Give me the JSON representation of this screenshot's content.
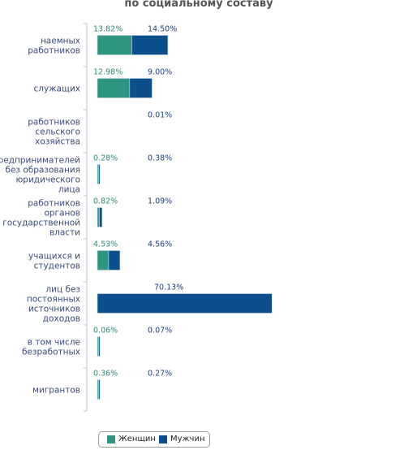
{
  "title": "по социальному составу",
  "colors": {
    "women": "#2e9680",
    "men": "#0b4f8c",
    "axis": "#b8c4d6"
  },
  "legend": {
    "women": "Женщин",
    "men": "Мужчин"
  },
  "chart_data": {
    "type": "bar",
    "orientation": "horizontal",
    "stacked": true,
    "title": "по социальному составу",
    "categories": [
      [
        "наемных",
        "работников"
      ],
      [
        "служащих"
      ],
      [
        "работников",
        "сельского",
        "хозяйства"
      ],
      [
        "предпринимателей",
        "без образования",
        "юридического",
        "лица"
      ],
      [
        "работников",
        "органов",
        "государственной",
        "власти"
      ],
      [
        "учащихся и",
        "студентов"
      ],
      [
        "лиц без",
        "постоянных",
        "источников",
        "доходов"
      ],
      [
        "в том числе",
        "безработных"
      ],
      [
        "мигрантов"
      ]
    ],
    "series": [
      {
        "name": "Женщин",
        "values": [
          13.82,
          12.98,
          null,
          0.28,
          0.82,
          4.53,
          null,
          0.06,
          0.36
        ],
        "labels": [
          "13.82%",
          "12.98%",
          "",
          "0.28%",
          "0.82%",
          "4.53%",
          "",
          "0.06%",
          "0.36%"
        ]
      },
      {
        "name": "Мужчин",
        "values": [
          14.5,
          9.0,
          0.01,
          0.38,
          1.09,
          4.56,
          70.13,
          0.07,
          0.27
        ],
        "labels": [
          "14.50%",
          "9.00%",
          "0.01%",
          "0.38%",
          "1.09%",
          "4.56%",
          "70.13%",
          "0.07%",
          "0.27%"
        ]
      }
    ],
    "legend_position": "bottom-left",
    "grid": false
  }
}
